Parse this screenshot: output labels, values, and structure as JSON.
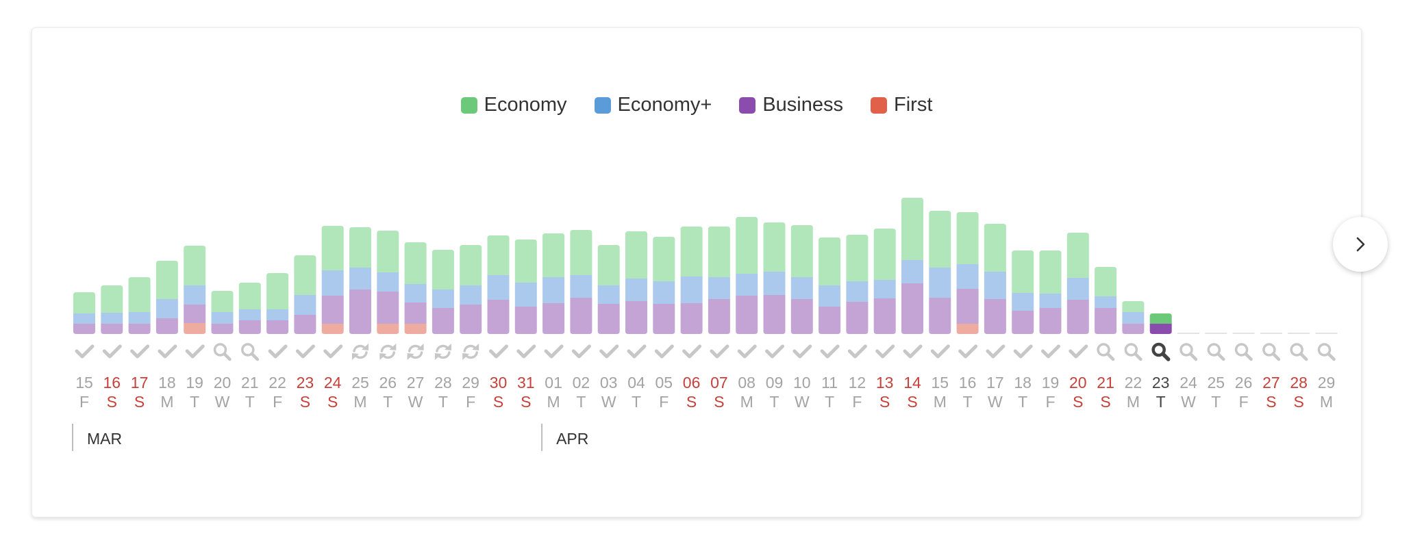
{
  "legend": [
    {
      "label": "Economy",
      "color": "#6cc97a"
    },
    {
      "label": "Economy+",
      "color": "#5a9bd8"
    },
    {
      "label": "Business",
      "color": "#8a4dad"
    },
    {
      "label": "First",
      "color": "#e0604a"
    }
  ],
  "colors": {
    "economy": "#b1e5ba",
    "economy_plus": "#abc9ec",
    "business": "#c4a4d5",
    "first": "#eeaba0",
    "economy_active": "#6cc97a",
    "business_active": "#8a4dad",
    "weekday_text": "#a3a3a3",
    "weekend_text": "#c8403a",
    "active_text": "#444444",
    "status_icon": "#c7c7c7",
    "status_icon_active": "#444444"
  },
  "chart_data": {
    "type": "bar",
    "stacked": true,
    "series": [
      {
        "name": "Economy",
        "key": "economy"
      },
      {
        "name": "Economy+",
        "key": "economy_plus"
      },
      {
        "name": "Business",
        "key": "business"
      },
      {
        "name": "First",
        "key": "first"
      }
    ],
    "months": [
      {
        "label": "MAR",
        "start_index": 0
      },
      {
        "label": "APR",
        "start_index": 17
      }
    ],
    "active_day": "23",
    "days": [
      {
        "day": "15",
        "dow": "F",
        "weekend": false,
        "status": "check",
        "economy": 31,
        "economy_plus": 15,
        "business": 15,
        "first": 0
      },
      {
        "day": "16",
        "dow": "S",
        "weekend": true,
        "status": "check",
        "economy": 40,
        "economy_plus": 16,
        "business": 15,
        "first": 0
      },
      {
        "day": "17",
        "dow": "S",
        "weekend": true,
        "status": "check",
        "economy": 51,
        "economy_plus": 17,
        "business": 15,
        "first": 0
      },
      {
        "day": "18",
        "dow": "M",
        "weekend": false,
        "status": "check",
        "economy": 56,
        "economy_plus": 28,
        "business": 23,
        "first": 0
      },
      {
        "day": "19",
        "dow": "T",
        "weekend": false,
        "status": "check",
        "economy": 58,
        "economy_plus": 28,
        "business": 27,
        "first": 16
      },
      {
        "day": "20",
        "dow": "W",
        "weekend": false,
        "status": "search",
        "economy": 31,
        "economy_plus": 17,
        "business": 15,
        "first": 0
      },
      {
        "day": "21",
        "dow": "T",
        "weekend": false,
        "status": "search",
        "economy": 39,
        "economy_plus": 16,
        "business": 20,
        "first": 0
      },
      {
        "day": "22",
        "dow": "F",
        "weekend": false,
        "status": "check",
        "economy": 53,
        "economy_plus": 16,
        "business": 20,
        "first": 0
      },
      {
        "day": "23",
        "dow": "S",
        "weekend": true,
        "status": "check",
        "economy": 58,
        "economy_plus": 29,
        "business": 28,
        "first": 0
      },
      {
        "day": "24",
        "dow": "S",
        "weekend": true,
        "status": "check",
        "economy": 65,
        "economy_plus": 37,
        "business": 41,
        "first": 15
      },
      {
        "day": "25",
        "dow": "M",
        "weekend": false,
        "status": "refresh",
        "economy": 59,
        "economy_plus": 32,
        "business": 65,
        "first": 0
      },
      {
        "day": "26",
        "dow": "T",
        "weekend": false,
        "status": "refresh",
        "economy": 61,
        "economy_plus": 28,
        "business": 47,
        "first": 15
      },
      {
        "day": "27",
        "dow": "W",
        "weekend": false,
        "status": "refresh",
        "economy": 61,
        "economy_plus": 27,
        "business": 31,
        "first": 15
      },
      {
        "day": "28",
        "dow": "T",
        "weekend": false,
        "status": "refresh",
        "economy": 58,
        "economy_plus": 27,
        "business": 38,
        "first": 0
      },
      {
        "day": "29",
        "dow": "F",
        "weekend": false,
        "status": "refresh",
        "economy": 59,
        "economy_plus": 28,
        "business": 43,
        "first": 0
      },
      {
        "day": "30",
        "dow": "S",
        "weekend": true,
        "status": "check",
        "economy": 58,
        "economy_plus": 36,
        "business": 50,
        "first": 0
      },
      {
        "day": "31",
        "dow": "S",
        "weekend": true,
        "status": "check",
        "economy": 63,
        "economy_plus": 35,
        "business": 40,
        "first": 0
      },
      {
        "day": "01",
        "dow": "M",
        "weekend": false,
        "status": "check",
        "economy": 64,
        "economy_plus": 38,
        "business": 45,
        "first": 0
      },
      {
        "day": "02",
        "dow": "T",
        "weekend": false,
        "status": "check",
        "economy": 66,
        "economy_plus": 33,
        "business": 53,
        "first": 0
      },
      {
        "day": "03",
        "dow": "W",
        "weekend": false,
        "status": "check",
        "economy": 59,
        "economy_plus": 27,
        "business": 44,
        "first": 0
      },
      {
        "day": "04",
        "dow": "T",
        "weekend": false,
        "status": "check",
        "economy": 69,
        "economy_plus": 33,
        "business": 48,
        "first": 0
      },
      {
        "day": "05",
        "dow": "F",
        "weekend": false,
        "status": "check",
        "economy": 65,
        "economy_plus": 33,
        "business": 44,
        "first": 0
      },
      {
        "day": "06",
        "dow": "S",
        "weekend": true,
        "status": "check",
        "economy": 73,
        "economy_plus": 39,
        "business": 45,
        "first": 0
      },
      {
        "day": "07",
        "dow": "S",
        "weekend": true,
        "status": "check",
        "economy": 74,
        "economy_plus": 32,
        "business": 51,
        "first": 0
      },
      {
        "day": "08",
        "dow": "M",
        "weekend": false,
        "status": "check",
        "economy": 83,
        "economy_plus": 32,
        "business": 56,
        "first": 0
      },
      {
        "day": "09",
        "dow": "T",
        "weekend": false,
        "status": "check",
        "economy": 72,
        "economy_plus": 34,
        "business": 57,
        "first": 0
      },
      {
        "day": "10",
        "dow": "W",
        "weekend": false,
        "status": "check",
        "economy": 76,
        "economy_plus": 32,
        "business": 51,
        "first": 0
      },
      {
        "day": "11",
        "dow": "T",
        "weekend": false,
        "status": "check",
        "economy": 70,
        "economy_plus": 31,
        "business": 40,
        "first": 0
      },
      {
        "day": "12",
        "dow": "F",
        "weekend": false,
        "status": "check",
        "economy": 68,
        "economy_plus": 30,
        "business": 47,
        "first": 0
      },
      {
        "day": "13",
        "dow": "S",
        "weekend": true,
        "status": "check",
        "economy": 75,
        "economy_plus": 27,
        "business": 52,
        "first": 0
      },
      {
        "day": "14",
        "dow": "S",
        "weekend": true,
        "status": "check",
        "economy": 91,
        "economy_plus": 34,
        "business": 74,
        "first": 0
      },
      {
        "day": "15",
        "dow": "M",
        "weekend": false,
        "status": "check",
        "economy": 83,
        "economy_plus": 44,
        "business": 53,
        "first": 0
      },
      {
        "day": "16",
        "dow": "T",
        "weekend": false,
        "status": "check",
        "economy": 76,
        "economy_plus": 36,
        "business": 51,
        "first": 15
      },
      {
        "day": "17",
        "dow": "W",
        "weekend": false,
        "status": "check",
        "economy": 70,
        "economy_plus": 40,
        "business": 51,
        "first": 0
      },
      {
        "day": "18",
        "dow": "T",
        "weekend": false,
        "status": "check",
        "economy": 62,
        "economy_plus": 26,
        "business": 34,
        "first": 0
      },
      {
        "day": "19",
        "dow": "F",
        "weekend": false,
        "status": "check",
        "economy": 63,
        "economy_plus": 21,
        "business": 38,
        "first": 0
      },
      {
        "day": "20",
        "dow": "S",
        "weekend": true,
        "status": "check",
        "economy": 66,
        "economy_plus": 32,
        "business": 50,
        "first": 0
      },
      {
        "day": "21",
        "dow": "S",
        "weekend": true,
        "status": "search",
        "economy": 43,
        "economy_plus": 17,
        "business": 38,
        "first": 0
      },
      {
        "day": "22",
        "dow": "M",
        "weekend": false,
        "status": "search",
        "economy": 16,
        "economy_plus": 17,
        "business": 15,
        "first": 0
      },
      {
        "day": "23",
        "dow": "T",
        "weekend": false,
        "status": "search",
        "active": true,
        "economy": 15,
        "economy_plus": 0,
        "business": 15,
        "first": 0
      },
      {
        "day": "24",
        "dow": "W",
        "weekend": false,
        "status": "search",
        "economy": 0,
        "economy_plus": 0,
        "business": 0,
        "first": 0
      },
      {
        "day": "25",
        "dow": "T",
        "weekend": false,
        "status": "search",
        "economy": 0,
        "economy_plus": 0,
        "business": 0,
        "first": 0
      },
      {
        "day": "26",
        "dow": "F",
        "weekend": false,
        "status": "search",
        "economy": 0,
        "economy_plus": 0,
        "business": 0,
        "first": 0
      },
      {
        "day": "27",
        "dow": "S",
        "weekend": true,
        "status": "search",
        "economy": 0,
        "economy_plus": 0,
        "business": 0,
        "first": 0
      },
      {
        "day": "28",
        "dow": "S",
        "weekend": true,
        "status": "search",
        "economy": 0,
        "economy_plus": 0,
        "business": 0,
        "first": 0
      },
      {
        "day": "29",
        "dow": "M",
        "weekend": false,
        "status": "search",
        "economy": 0,
        "economy_plus": 0,
        "business": 0,
        "first": 0
      }
    ]
  }
}
